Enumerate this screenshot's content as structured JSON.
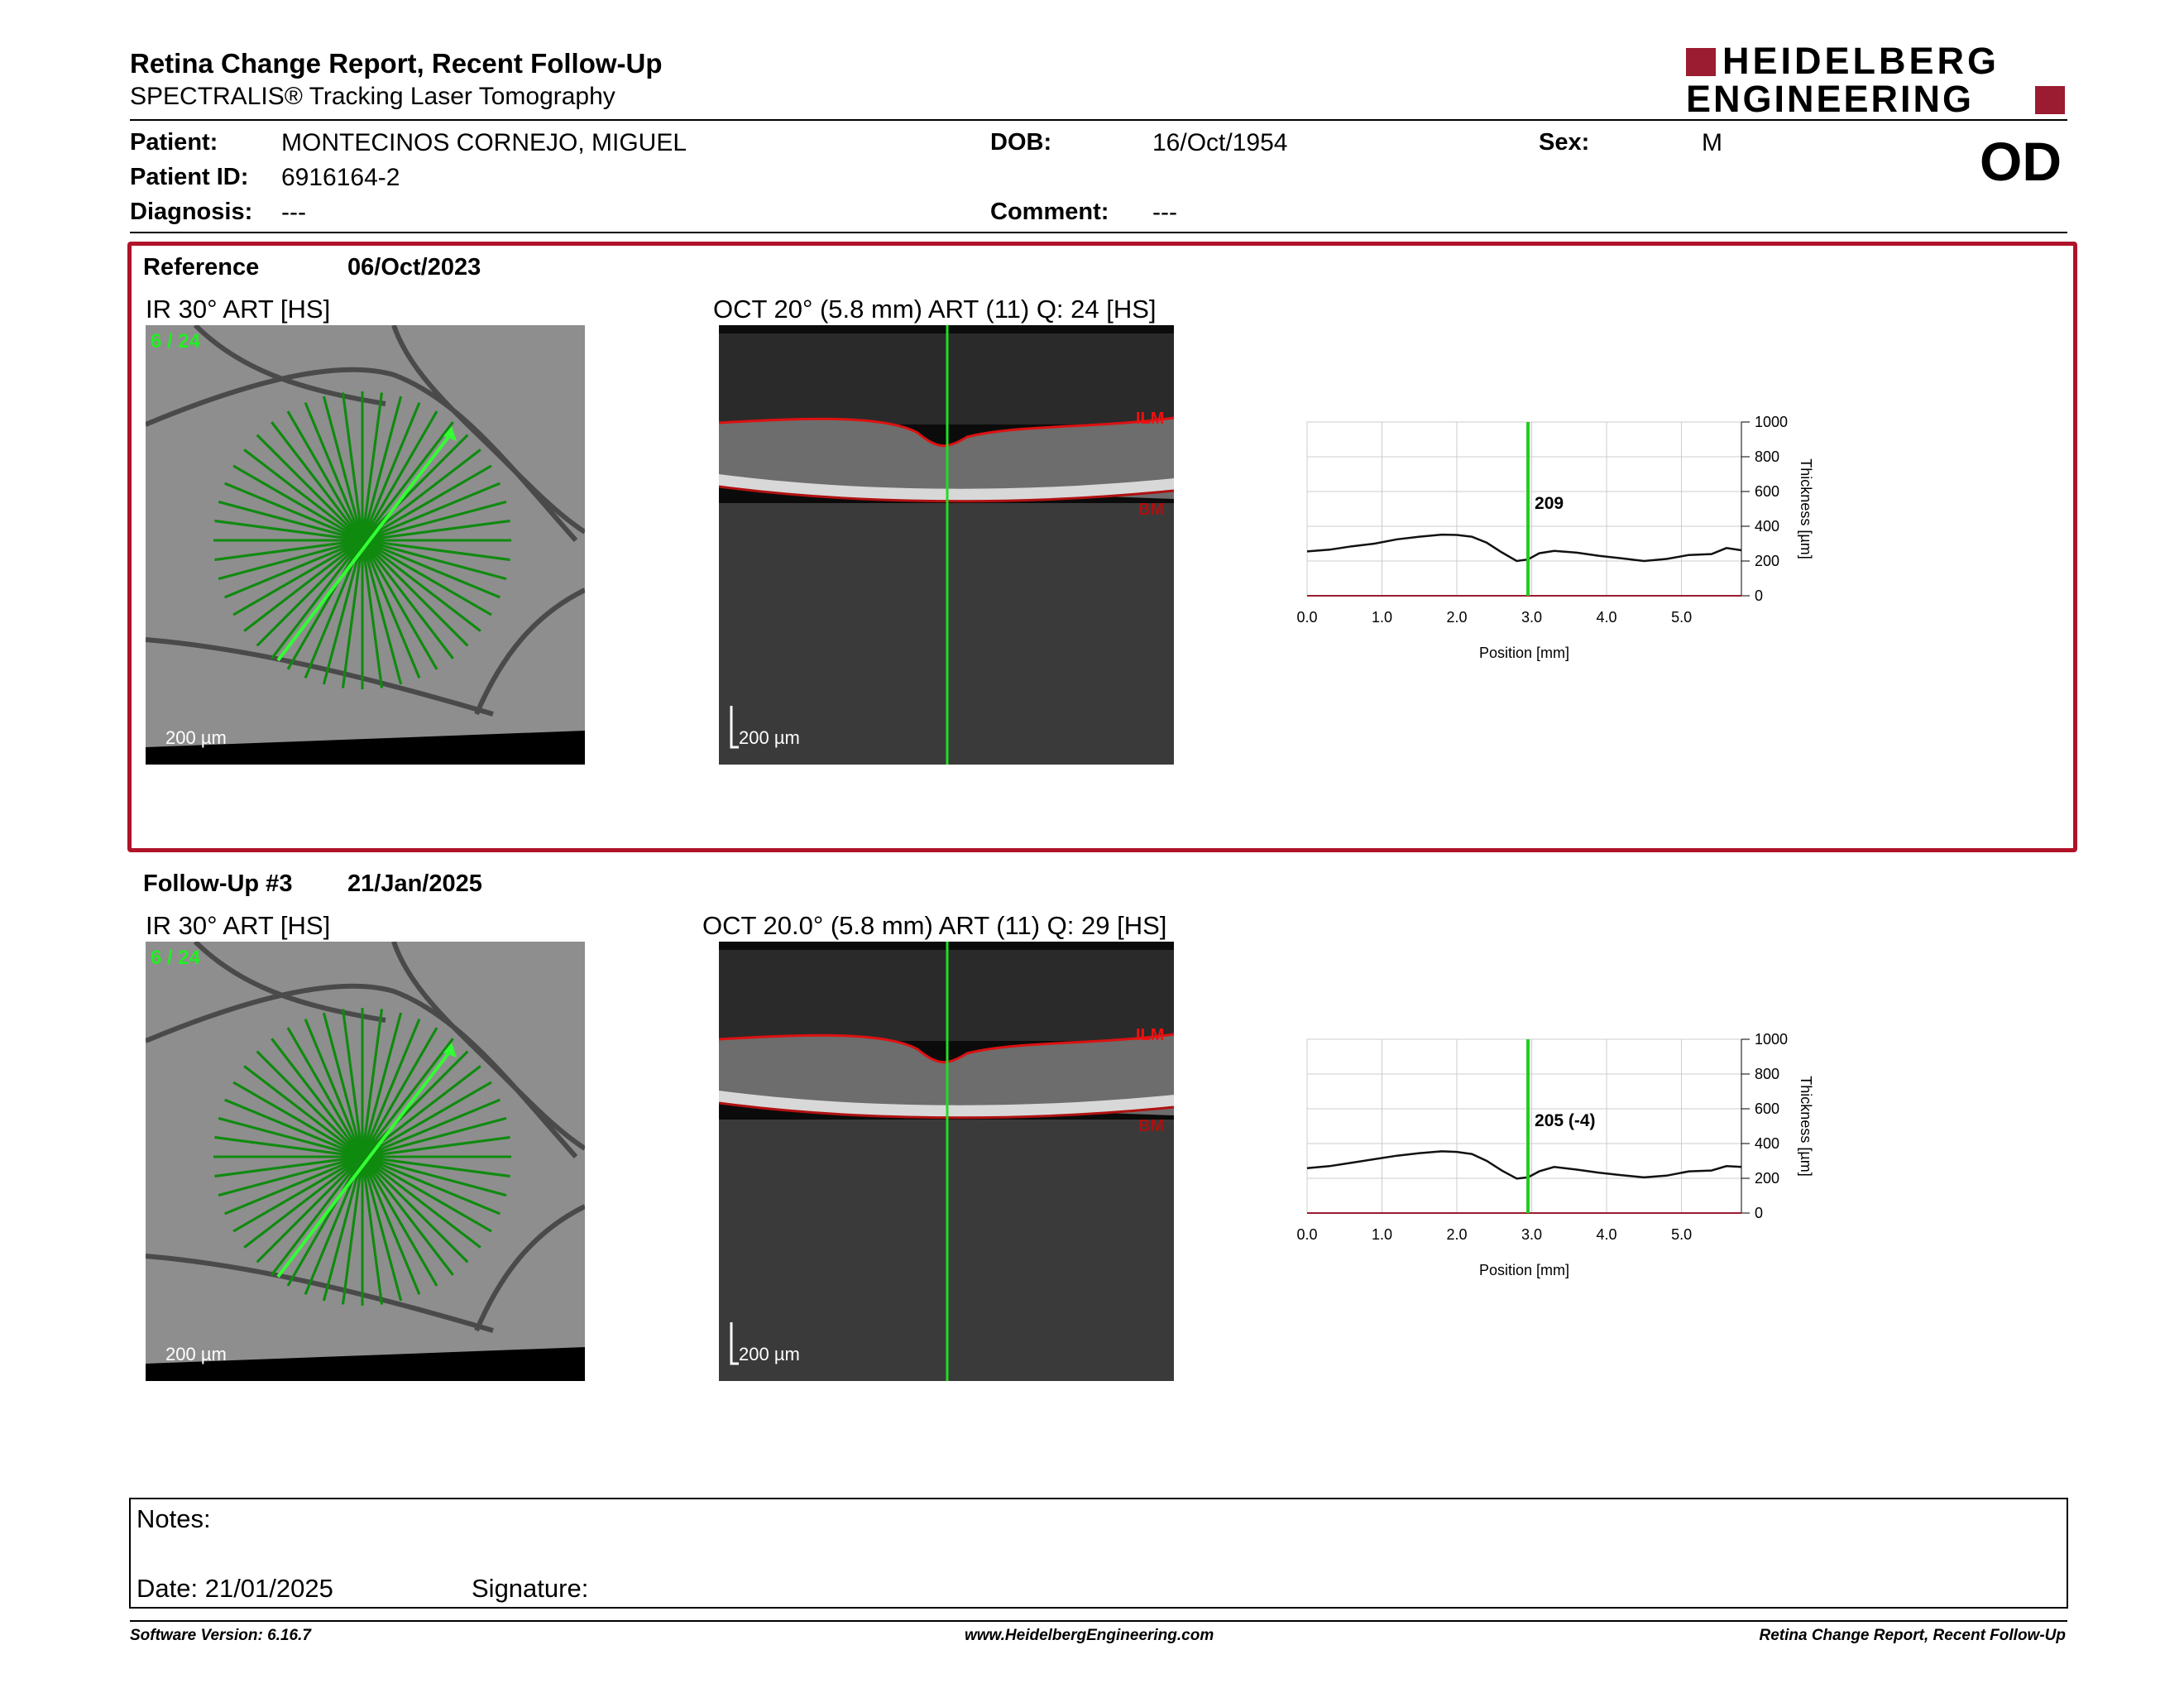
{
  "report": {
    "title": "Retina Change Report, Recent Follow-Up",
    "subtitle": "SPECTRALIS® Tracking Laser Tomography",
    "eye": "OD",
    "logo_top": "HEIDELBERG",
    "logo_bottom": "ENGINEERING",
    "brand_color": "#9b1b30"
  },
  "patient": {
    "patient_label": "Patient:",
    "patient_value": "MONTECINOS CORNEJO, MIGUEL",
    "id_label": "Patient ID:",
    "id_value": "6916164-2",
    "diagnosis_label": "Diagnosis:",
    "diagnosis_value": "---",
    "dob_label": "DOB:",
    "dob_value": "16/Oct/1954",
    "comment_label": "Comment:",
    "comment_value": "---",
    "sex_label": "Sex:",
    "sex_value": "M"
  },
  "reference": {
    "label": "Reference",
    "date": "06/Oct/2023",
    "ir_title": "IR 30° ART [HS]",
    "ir_counter": "6 / 24",
    "oct_title": "OCT 20° (5.8 mm) ART (11) Q: 24 [HS]",
    "scale": "200 µm",
    "ilm": "ILM",
    "bm": "BM",
    "marker_value": "209"
  },
  "followup": {
    "label": "Follow-Up #3",
    "date": "21/Jan/2025",
    "ir_title": "IR 30° ART [HS]",
    "ir_counter": "6 / 24",
    "oct_title": "OCT 20.0° (5.8 mm) ART (11) Q: 29 [HS]",
    "scale": "200 µm",
    "ilm": "ILM",
    "bm": "BM",
    "marker_value": "205 (-4)"
  },
  "notes": {
    "label": "Notes:",
    "date_label": "Date: 21/01/2025",
    "signature_label": "Signature:"
  },
  "footer": {
    "left": "Software Version: 6.16.7",
    "center": "www.HeidelbergEngineering.com",
    "right": "Retina Change Report, Recent Follow-Up"
  },
  "chart_data": [
    {
      "type": "line",
      "xlabel": "Position [mm]",
      "ylabel": "Thickness [µm]",
      "xlim": [
        0,
        5.8
      ],
      "ylim": [
        0,
        1000
      ],
      "x_ticks": [
        "0.0",
        "1.0",
        "2.0",
        "3.0",
        "4.0",
        "5.0"
      ],
      "y_ticks": [
        "0",
        "200",
        "400",
        "600",
        "800",
        "1000"
      ],
      "marker_x": 2.95,
      "marker_label": "209",
      "series": [
        {
          "x": [
            0,
            0.3,
            0.6,
            0.9,
            1.2,
            1.5,
            1.8,
            2.0,
            2.2,
            2.4,
            2.6,
            2.8,
            2.95,
            3.1,
            3.3,
            3.6,
            3.9,
            4.2,
            4.5,
            4.8,
            5.1,
            5.4,
            5.6,
            5.8
          ],
          "values": [
            255,
            265,
            285,
            300,
            325,
            340,
            352,
            350,
            340,
            305,
            250,
            200,
            209,
            245,
            258,
            248,
            230,
            215,
            200,
            212,
            235,
            240,
            275,
            262
          ]
        }
      ]
    },
    {
      "type": "line",
      "xlabel": "Position [mm]",
      "ylabel": "Thickness [µm]",
      "xlim": [
        0,
        5.8
      ],
      "ylim": [
        0,
        1000
      ],
      "x_ticks": [
        "0.0",
        "1.0",
        "2.0",
        "3.0",
        "4.0",
        "5.0"
      ],
      "y_ticks": [
        "0",
        "200",
        "400",
        "600",
        "800",
        "1000"
      ],
      "marker_x": 2.95,
      "marker_label": "205 (-4)",
      "series": [
        {
          "x": [
            0,
            0.3,
            0.6,
            0.9,
            1.2,
            1.5,
            1.8,
            2.0,
            2.2,
            2.4,
            2.6,
            2.8,
            2.95,
            3.1,
            3.3,
            3.6,
            3.9,
            4.2,
            4.5,
            4.8,
            5.1,
            5.4,
            5.6,
            5.8
          ],
          "values": [
            258,
            270,
            290,
            310,
            330,
            345,
            355,
            352,
            340,
            300,
            245,
            198,
            205,
            240,
            265,
            250,
            232,
            218,
            205,
            215,
            240,
            245,
            270,
            265
          ]
        }
      ]
    }
  ]
}
